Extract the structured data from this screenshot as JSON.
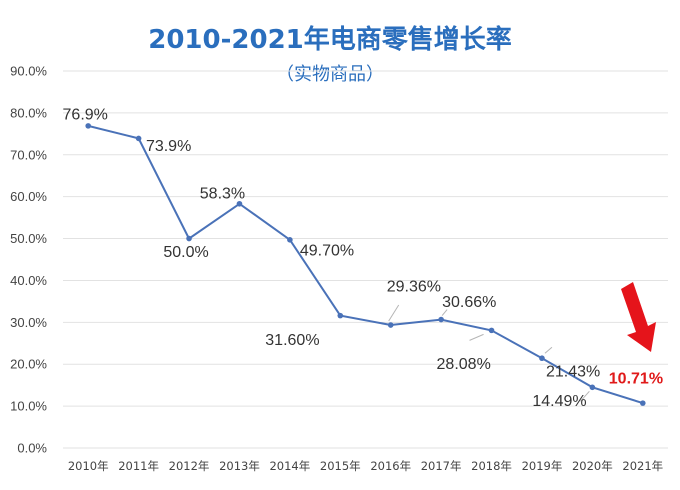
{
  "chart_data": {
    "type": "line",
    "title": "2010-2021年电商零售增长率",
    "subtitle": "（实物商品）",
    "categories": [
      "2010年",
      "2011年",
      "2012年",
      "2013年",
      "2014年",
      "2015年",
      "2016年",
      "2017年",
      "2018年",
      "2019年",
      "2020年",
      "2021年"
    ],
    "series": [
      {
        "values": [
          76.9,
          73.9,
          50.0,
          58.3,
          49.7,
          31.6,
          29.36,
          30.66,
          28.08,
          21.43,
          14.49,
          10.71
        ]
      }
    ],
    "data_labels": [
      "76.9%",
      "73.9%",
      "50.0%",
      "58.3%",
      "49.70%",
      "31.60%",
      "29.36%",
      "30.66%",
      "28.08%",
      "21.43%",
      "14.49%",
      "10.71%"
    ],
    "highlight_index": 11,
    "ylim": [
      0,
      90
    ],
    "yticks": [
      "0.0%",
      "10.0%",
      "20.0%",
      "30.0%",
      "40.0%",
      "50.0%",
      "60.0%",
      "70.0%",
      "80.0%",
      "90.0%"
    ],
    "grid": true,
    "colors": {
      "series": "#4a72b8",
      "title": "#2a6ebd",
      "highlight": "#e01a1a",
      "grid": "#e2e2e2"
    }
  }
}
